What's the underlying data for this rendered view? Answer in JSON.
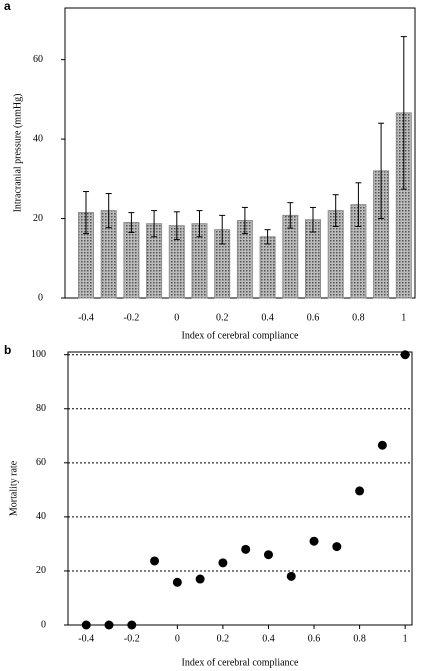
{
  "chart_data": [
    {
      "type": "bar",
      "panel": "a",
      "x_label": "Index of cerebral compliance",
      "y_label": "Intracranial pressure (mmHg)",
      "categories": [
        "-0.4",
        null,
        "-0.2",
        null,
        "0",
        null,
        "0.2",
        null,
        "0.4",
        null,
        "0.6",
        null,
        "0.8",
        null,
        "1"
      ],
      "values": [
        21.5,
        22,
        19,
        18.7,
        18.2,
        18.7,
        17.2,
        19.5,
        15.4,
        20.8,
        19.7,
        22,
        23.5,
        32,
        46.6
      ],
      "errors": [
        5.3,
        4.3,
        2.5,
        3.3,
        3.5,
        3.3,
        3.6,
        3.3,
        1.8,
        3.2,
        3.1,
        4,
        5.5,
        12,
        19.2
      ],
      "color": "#8c8c8c",
      "ylim": [
        0,
        73
      ],
      "yticks": [
        0,
        20,
        40,
        60
      ]
    },
    {
      "type": "scatter",
      "panel": "b",
      "x_label": "Index of cerebral compliance",
      "y_label": "Mortality rate",
      "x": [
        -0.4,
        -0.3,
        -0.2,
        -0.1,
        0,
        0.1,
        0.2,
        0.3,
        0.4,
        0.5,
        0.6,
        0.7,
        0.8,
        0.9,
        1
      ],
      "values": [
        0,
        0,
        0,
        23.7,
        15.8,
        17,
        23,
        28,
        26,
        18,
        31,
        29,
        49.6,
        66.5,
        100
      ],
      "color": "#000000",
      "xlim": [
        -0.48,
        1.03
      ],
      "xticks": [
        -0.4,
        -0.2,
        0,
        0.2,
        0.4,
        0.6,
        0.8,
        1
      ],
      "ylim": [
        0,
        101
      ],
      "yticks": [
        0,
        20,
        40,
        60,
        80,
        100
      ],
      "grid": true
    }
  ]
}
